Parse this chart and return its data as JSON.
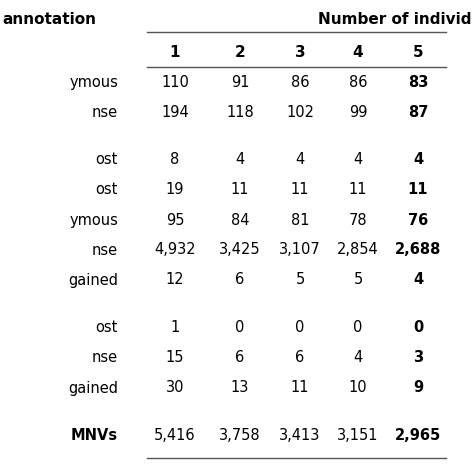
{
  "col_header": [
    "1",
    "2",
    "3",
    "4",
    "5"
  ],
  "top_right_label": "Number of individ",
  "top_left_label": "annotation",
  "rows": [
    {
      "label": "ymous",
      "values": [
        "110",
        "91",
        "86",
        "86",
        "83"
      ],
      "bold_last": true,
      "bold_label": false
    },
    {
      "label": "nse",
      "values": [
        "194",
        "118",
        "102",
        "99",
        "87"
      ],
      "bold_last": true,
      "bold_label": false
    },
    {
      "label": "ost",
      "values": [
        "8",
        "4",
        "4",
        "4",
        "4"
      ],
      "bold_last": true,
      "bold_label": false
    },
    {
      "label": "ost",
      "values": [
        "19",
        "11",
        "11",
        "11",
        "11"
      ],
      "bold_last": true,
      "bold_label": false
    },
    {
      "label": "ymous",
      "values": [
        "95",
        "84",
        "81",
        "78",
        "76"
      ],
      "bold_last": true,
      "bold_label": false
    },
    {
      "label": "nse",
      "values": [
        "4,932",
        "3,425",
        "3,107",
        "2,854",
        "2,688"
      ],
      "bold_last": true,
      "bold_label": false
    },
    {
      "label": "gained",
      "values": [
        "12",
        "6",
        "5",
        "5",
        "4"
      ],
      "bold_last": true,
      "bold_label": false
    },
    {
      "label": "ost",
      "values": [
        "1",
        "0",
        "0",
        "0",
        "0"
      ],
      "bold_last": true,
      "bold_label": false
    },
    {
      "label": "nse",
      "values": [
        "15",
        "6",
        "6",
        "4",
        "3"
      ],
      "bold_last": true,
      "bold_label": false
    },
    {
      "label": "gained",
      "values": [
        "30",
        "13",
        "11",
        "10",
        "9"
      ],
      "bold_last": true,
      "bold_label": false
    },
    {
      "label": "MNVs",
      "values": [
        "5,416",
        "3,758",
        "3,413",
        "3,151",
        "2,965"
      ],
      "bold_last": true,
      "bold_label": true
    }
  ],
  "group_breaks_after": [
    1,
    6,
    9
  ],
  "bg_color": "#ffffff",
  "text_color": "#000000",
  "line_color": "#555555",
  "font_size": 10.5,
  "header_font_size": 11
}
